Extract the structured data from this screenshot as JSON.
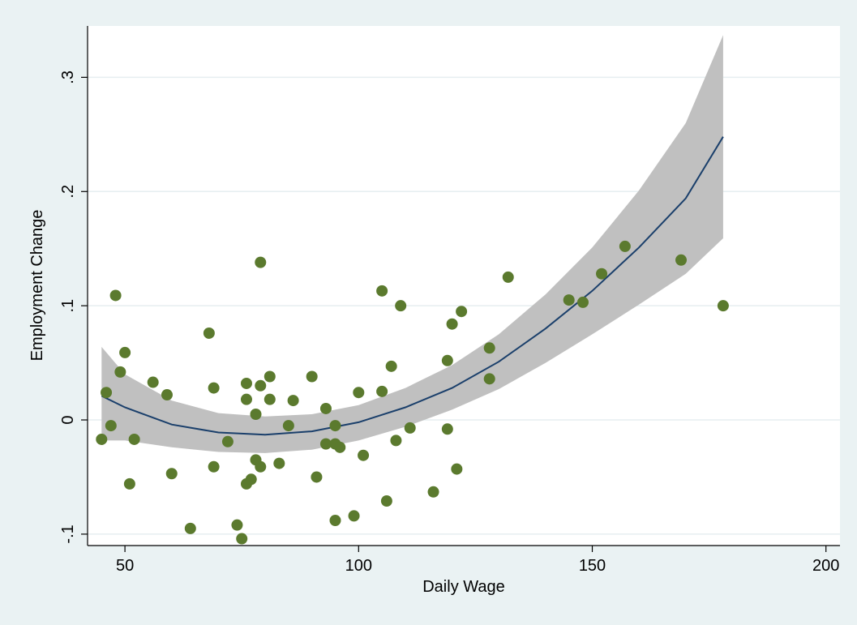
{
  "chart_data": {
    "type": "scatter",
    "title": "",
    "xlabel": "Daily Wage",
    "ylabel": "Employment Change",
    "xlim": [
      42,
      203
    ],
    "ylim": [
      -0.11,
      0.345
    ],
    "x_ticks": [
      50,
      100,
      150,
      200
    ],
    "x_tick_labels": [
      "50",
      "100",
      "150",
      "200"
    ],
    "y_ticks": [
      -0.1,
      0,
      0.1,
      0.2,
      0.3
    ],
    "y_tick_labels": [
      "-.1",
      "0",
      ".1",
      ".2",
      ".3"
    ],
    "grid": "horizontal",
    "legend": "none",
    "colors": {
      "background": "#eaf2f3",
      "plot_area": "#ffffff",
      "points": "#5b7a2e",
      "fit_line": "#1a3f6b",
      "ci_band": "#c0c0c0",
      "grid": "#e6eef0"
    },
    "scatter_points": [
      {
        "x": 45,
        "y": -0.017
      },
      {
        "x": 46,
        "y": 0.024
      },
      {
        "x": 47,
        "y": -0.005
      },
      {
        "x": 48,
        "y": 0.109
      },
      {
        "x": 49,
        "y": 0.042
      },
      {
        "x": 50,
        "y": 0.059
      },
      {
        "x": 51,
        "y": -0.056
      },
      {
        "x": 52,
        "y": -0.017
      },
      {
        "x": 56,
        "y": 0.033
      },
      {
        "x": 59,
        "y": 0.022
      },
      {
        "x": 60,
        "y": -0.047
      },
      {
        "x": 64,
        "y": -0.095
      },
      {
        "x": 68,
        "y": 0.076
      },
      {
        "x": 69,
        "y": 0.028
      },
      {
        "x": 69,
        "y": -0.041
      },
      {
        "x": 72,
        "y": -0.019
      },
      {
        "x": 74,
        "y": -0.092
      },
      {
        "x": 75,
        "y": -0.104
      },
      {
        "x": 76,
        "y": 0.032
      },
      {
        "x": 76,
        "y": 0.018
      },
      {
        "x": 76,
        "y": -0.056
      },
      {
        "x": 77,
        "y": -0.052
      },
      {
        "x": 78,
        "y": 0.005
      },
      {
        "x": 78,
        "y": -0.035
      },
      {
        "x": 79,
        "y": 0.138
      },
      {
        "x": 79,
        "y": 0.03
      },
      {
        "x": 79,
        "y": -0.041
      },
      {
        "x": 81,
        "y": 0.038
      },
      {
        "x": 81,
        "y": 0.018
      },
      {
        "x": 83,
        "y": -0.038
      },
      {
        "x": 85,
        "y": -0.005
      },
      {
        "x": 86,
        "y": 0.017
      },
      {
        "x": 90,
        "y": 0.038
      },
      {
        "x": 91,
        "y": -0.05
      },
      {
        "x": 93,
        "y": 0.01
      },
      {
        "x": 93,
        "y": -0.021
      },
      {
        "x": 95,
        "y": -0.005
      },
      {
        "x": 95,
        "y": -0.021
      },
      {
        "x": 95,
        "y": -0.088
      },
      {
        "x": 96,
        "y": -0.024
      },
      {
        "x": 99,
        "y": -0.084
      },
      {
        "x": 100,
        "y": 0.024
      },
      {
        "x": 101,
        "y": -0.031
      },
      {
        "x": 105,
        "y": 0.113
      },
      {
        "x": 105,
        "y": 0.025
      },
      {
        "x": 106,
        "y": -0.071
      },
      {
        "x": 107,
        "y": 0.047
      },
      {
        "x": 108,
        "y": -0.018
      },
      {
        "x": 109,
        "y": 0.1
      },
      {
        "x": 111,
        "y": -0.007
      },
      {
        "x": 116,
        "y": -0.063
      },
      {
        "x": 119,
        "y": 0.052
      },
      {
        "x": 119,
        "y": -0.008
      },
      {
        "x": 120,
        "y": 0.084
      },
      {
        "x": 121,
        "y": -0.043
      },
      {
        "x": 122,
        "y": 0.095
      },
      {
        "x": 128,
        "y": 0.063
      },
      {
        "x": 128,
        "y": 0.036
      },
      {
        "x": 132,
        "y": 0.125
      },
      {
        "x": 145,
        "y": 0.105
      },
      {
        "x": 148,
        "y": 0.103
      },
      {
        "x": 152,
        "y": 0.128
      },
      {
        "x": 157,
        "y": 0.152
      },
      {
        "x": 169,
        "y": 0.14
      },
      {
        "x": 178,
        "y": 0.1
      }
    ],
    "fit_line": {
      "x": [
        45,
        50,
        60,
        70,
        80,
        90,
        100,
        110,
        120,
        130,
        140,
        150,
        160,
        170,
        178
      ],
      "y": [
        0.021,
        0.011,
        -0.004,
        -0.011,
        -0.013,
        -0.01,
        -0.002,
        0.011,
        0.028,
        0.051,
        0.08,
        0.113,
        0.151,
        0.194,
        0.248
      ]
    },
    "confidence_band": {
      "x": [
        45,
        50,
        60,
        70,
        80,
        90,
        100,
        110,
        120,
        130,
        140,
        150,
        160,
        170,
        178
      ],
      "upper": [
        0.064,
        0.04,
        0.017,
        0.006,
        0.003,
        0.005,
        0.013,
        0.028,
        0.048,
        0.075,
        0.11,
        0.151,
        0.201,
        0.26,
        0.337
      ],
      "lower": [
        -0.018,
        -0.018,
        -0.024,
        -0.028,
        -0.029,
        -0.026,
        -0.018,
        -0.006,
        0.009,
        0.027,
        0.05,
        0.075,
        0.101,
        0.128,
        0.159
      ]
    }
  }
}
